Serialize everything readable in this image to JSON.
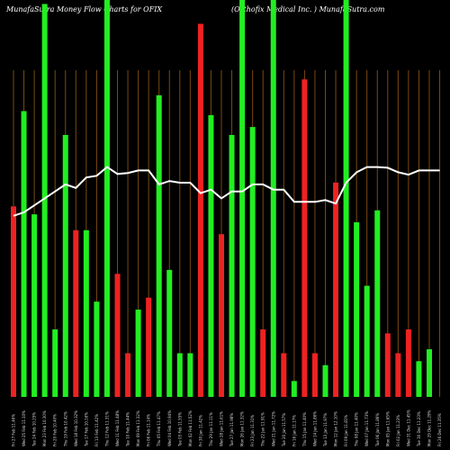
{
  "header": {
    "left": "MunafaSutra  Money Flow  Charts for OFIX",
    "right": "(Orthofix Medical Inc. ) MunafaSutra.com"
  },
  "colors": {
    "up": "#22ee22",
    "down": "#ee2222",
    "line": "#ffffff",
    "grid": "#7a4a10",
    "background": "#000000"
  },
  "chart_data": {
    "type": "bar",
    "title": "MunafaSutra  Money Flow  Charts for OFIX",
    "subtitle": "(Orthofix Medical Inc. ) MunafaSutra.com",
    "xlabel": "",
    "ylabel": "",
    "grid": true,
    "legend": "none",
    "categories": [
      "Fri 27 Feb 11.46%",
      "Wed 25 Feb 11.10%",
      "Tue 24 Feb 10.25%",
      "Mon 23 Feb 10.30%",
      "Fri 20 Feb 10.40%",
      "Thu 19 Feb 10.42%",
      "Wed 18 Feb 10.32%",
      "Tue 17 Feb 10.16%",
      "Fri 13 Feb 11.42%",
      "Thu 12 Feb 11.31%",
      "Wed 11 Feb 11.48%",
      "Tue 10 Feb 11.44%",
      "Mon 09 Feb 11.32%",
      "Fri 06 Feb 11.14%",
      "Thu 05 Feb 11.47%",
      "Wed 04 Feb 10.94%",
      "Tue 03 Feb 11.55%",
      "Mon 02 Feb 11.52%",
      "Fri 30 Jan 11.42%",
      "Thu 29 Jan 11.11%",
      "Wed 28 Jan 11.61%",
      "Tue 27 Jan 11.98%",
      "Mon 26 Jan 11.32%",
      "Fri 23 Jan 11.31%",
      "Thu 22 Jan 11.91%",
      "Wed 21 Jan 11.72%",
      "Tue 20 Jan 11.57%",
      "Fri 16 Jan 11.17%",
      "Thu 15 Jan 11.40%",
      "Wed 14 Jan 11.86%",
      "Tue 13 Jan 11.97%",
      "Mon 12 Jan 12.10%",
      "Fri 09 Jan 11.81%",
      "Thu 08 Jan 11.40%",
      "Wed 07 Jan 11.73%",
      "Tue 06 Jan 11.86%",
      "Mon 05 Jan 11.65%",
      "Fri 02 Jan 11.23%",
      "Wed 31 Dec 11.45%",
      "Tue 30 Dec 11.23%",
      "Mon 29 Dec 11.29%",
      "Fri 26 Dec 11.35%"
    ],
    "series": [
      {
        "role": "money_flow_bars",
        "values": [
          48,
          72,
          46,
          99,
          17,
          66,
          42,
          42,
          24,
          100,
          31,
          11,
          22,
          25,
          76,
          32,
          11,
          11,
          94,
          71,
          41,
          66,
          100,
          68,
          17,
          100,
          11,
          4,
          80,
          11,
          8,
          54,
          100,
          44,
          28,
          47,
          16,
          11,
          17,
          9,
          12,
          0
        ],
        "direction": [
          "down",
          "up",
          "up",
          "up",
          "up",
          "up",
          "down",
          "up",
          "up",
          "up",
          "down",
          "down",
          "up",
          "down",
          "up",
          "up",
          "up",
          "up",
          "down",
          "up",
          "down",
          "up",
          "up",
          "up",
          "down",
          "up",
          "down",
          "up",
          "down",
          "down",
          "up",
          "down",
          "up",
          "up",
          "up",
          "up",
          "down",
          "down",
          "down",
          "up",
          "up",
          "up"
        ]
      },
      {
        "role": "price_line",
        "values": [
          52,
          53,
          55,
          57,
          59,
          61,
          60,
          63,
          63.5,
          66,
          64,
          64.3,
          65,
          65,
          61,
          62,
          61.5,
          61.5,
          58.5,
          59.5,
          57,
          59,
          59,
          61,
          61,
          59.5,
          59.5,
          56,
          56,
          56,
          56.5,
          55.5,
          61.5,
          64.5,
          66,
          66,
          65.8,
          64.5,
          63.8,
          65,
          65,
          65
        ]
      }
    ],
    "ylim": [
      0,
      100
    ]
  }
}
